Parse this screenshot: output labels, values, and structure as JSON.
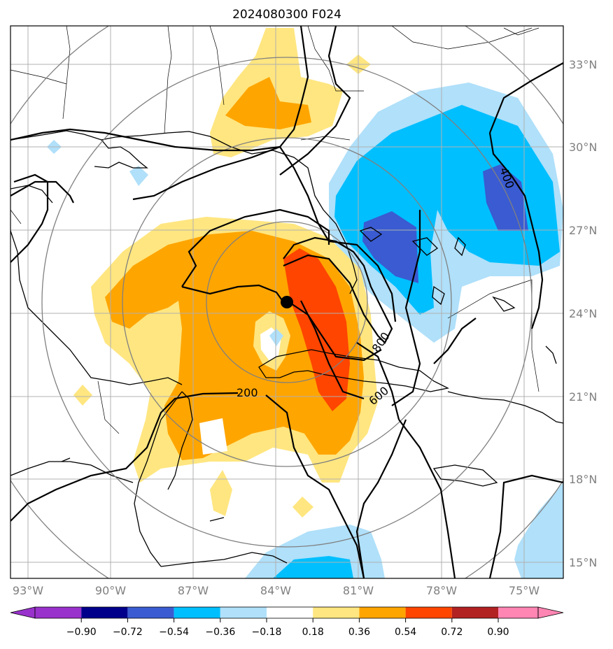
{
  "title": "2024080300 F024",
  "lat_labels": [
    "33°N",
    "30°N",
    "27°N",
    "24°N",
    "21°N",
    "18°N",
    "15°N"
  ],
  "lon_labels": [
    "93°W",
    "90°W",
    "87°W",
    "84°W",
    "81°W",
    "78°W",
    "75°W"
  ],
  "contour_labels": [
    "200",
    "400",
    "600",
    "800"
  ],
  "colorbar": {
    "ticks": [
      "−0.90",
      "−0.72",
      "−0.54",
      "−0.36",
      "−0.18",
      "0.18",
      "0.36",
      "0.54",
      "0.72",
      "0.90"
    ],
    "colors": [
      "#9932cc",
      "#00008b",
      "#3a5bd1",
      "#00bfff",
      "#b0e0fa",
      "#ffffff",
      "#ffe680",
      "#ffa500",
      "#ff4500",
      "#b22222",
      "#ff85b3"
    ]
  },
  "storm_center_marker": "filled-circle"
}
